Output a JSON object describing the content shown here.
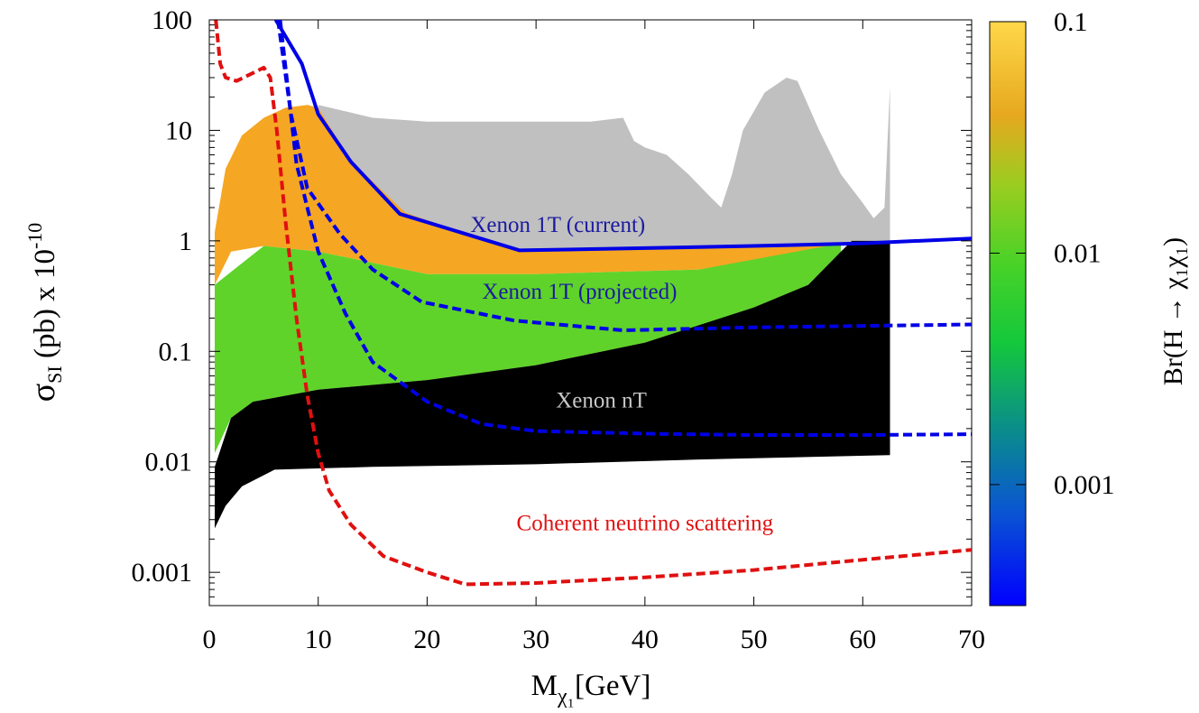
{
  "chart_data": {
    "type": "scatter",
    "xlabel": {
      "main": "M",
      "sub": "χ₁",
      "unit": "[GeV]"
    },
    "ylabel": {
      "sigma": "σ",
      "sub": "SI",
      "mid": " (pb) x 10",
      "sup": "-10"
    },
    "x_ticks": [
      "0",
      "10",
      "20",
      "30",
      "40",
      "50",
      "60",
      "70"
    ],
    "x_tick_values": [
      0,
      10,
      20,
      30,
      40,
      50,
      60,
      70
    ],
    "y_ticks": [
      "100",
      "10",
      "1",
      "0.1",
      "0.01",
      "0.001"
    ],
    "y_tick_values": [
      100,
      10,
      1,
      0.1,
      0.01,
      0.001
    ],
    "xlim": [
      0,
      70
    ],
    "ylim": [
      0.0005,
      100
    ],
    "y_scale": "log",
    "grid": false,
    "colorbar": {
      "label": "Br(H → χ₁χ₁)",
      "ticks": [
        "0.1",
        "0.01",
        "0.001"
      ],
      "tick_values": [
        0.1,
        0.01,
        0.001
      ],
      "range": [
        0.0003,
        0.1
      ],
      "scale": "log",
      "colors": [
        "#0000ff",
        "#0072c8",
        "#00a86b",
        "#2ed12e",
        "#7fd52a",
        "#e0b400",
        "#f5a623",
        "#ffd34d"
      ]
    },
    "regions": [
      {
        "name": "grey",
        "color": "#c0c0c0",
        "upper": [
          [
            10,
            17
          ],
          [
            15,
            13
          ],
          [
            20,
            12
          ],
          [
            25,
            12
          ],
          [
            30,
            12
          ],
          [
            35,
            12
          ],
          [
            38,
            13
          ],
          [
            39,
            8
          ],
          [
            40,
            7
          ],
          [
            42,
            6
          ],
          [
            44,
            4
          ],
          [
            46,
            2.5
          ],
          [
            47,
            2
          ],
          [
            48,
            4
          ],
          [
            49,
            10
          ],
          [
            51,
            22
          ],
          [
            53,
            30
          ],
          [
            54,
            28
          ],
          [
            56,
            10
          ],
          [
            58,
            4
          ],
          [
            60,
            2.2
          ],
          [
            61,
            1.6
          ],
          [
            62,
            2
          ],
          [
            62.5,
            25
          ]
        ],
        "lower": [
          [
            10,
            13
          ],
          [
            13,
            5
          ],
          [
            18,
            1.7
          ],
          [
            28,
            0.82
          ],
          [
            40,
            0.86
          ],
          [
            50,
            0.92
          ],
          [
            62.5,
            0.95
          ]
        ]
      },
      {
        "name": "orange",
        "color": "#f5a623",
        "upper": [
          [
            0.5,
            1.2
          ],
          [
            1.5,
            4.5
          ],
          [
            3,
            9
          ],
          [
            5,
            13
          ],
          [
            7,
            16
          ],
          [
            9,
            17
          ],
          [
            10,
            16
          ],
          [
            13,
            5.3
          ],
          [
            18,
            1.8
          ],
          [
            28,
            0.82
          ],
          [
            45,
            0.85
          ],
          [
            58,
            0.95
          ]
        ],
        "lower": [
          [
            0.5,
            0.4
          ],
          [
            2,
            0.8
          ],
          [
            5,
            0.9
          ],
          [
            10,
            0.8
          ],
          [
            20,
            0.5
          ],
          [
            30,
            0.5
          ],
          [
            45,
            0.55
          ],
          [
            58,
            0.9
          ]
        ]
      },
      {
        "name": "green",
        "color": "#5fd32a",
        "upper": [
          [
            0.5,
            0.4
          ],
          [
            5,
            0.9
          ],
          [
            10,
            0.8
          ],
          [
            20,
            0.5
          ],
          [
            30,
            0.5
          ],
          [
            45,
            0.55
          ],
          [
            58,
            0.95
          ]
        ],
        "lower": [
          [
            0.5,
            0.012
          ],
          [
            2,
            0.025
          ],
          [
            4,
            0.035
          ],
          [
            10,
            0.045
          ],
          [
            20,
            0.055
          ],
          [
            30,
            0.075
          ],
          [
            40,
            0.12
          ],
          [
            50,
            0.25
          ],
          [
            55,
            0.4
          ],
          [
            58,
            0.8
          ]
        ]
      },
      {
        "name": "black",
        "color": "#000000",
        "upper": [
          [
            0.5,
            0.009
          ],
          [
            2,
            0.025
          ],
          [
            4,
            0.035
          ],
          [
            10,
            0.045
          ],
          [
            20,
            0.055
          ],
          [
            30,
            0.075
          ],
          [
            40,
            0.12
          ],
          [
            50,
            0.25
          ],
          [
            55,
            0.4
          ],
          [
            58,
            0.8
          ],
          [
            59,
            1
          ],
          [
            62.5,
            1
          ]
        ],
        "lower": [
          [
            0.5,
            0.0025
          ],
          [
            1.5,
            0.004
          ],
          [
            3,
            0.006
          ],
          [
            6,
            0.0085
          ],
          [
            15,
            0.009
          ],
          [
            30,
            0.0095
          ],
          [
            45,
            0.0105
          ],
          [
            62.5,
            0.0115
          ]
        ]
      }
    ],
    "series": [
      {
        "name": "Xenon 1T (current)",
        "style": "solid",
        "color": "#0000e6",
        "x": [
          6.1,
          8.5,
          10,
          13,
          17.5,
          28.5,
          40,
          50,
          60,
          70
        ],
        "y": [
          100,
          40,
          14,
          5.2,
          1.75,
          0.82,
          0.86,
          0.9,
          0.95,
          1.05
        ]
      },
      {
        "name": "Xenon 1T (projected)",
        "style": "dashed",
        "color": "#0000e6",
        "x": [
          6.3,
          7.5,
          9,
          12,
          15,
          19.5,
          28,
          38,
          50,
          60,
          70
        ],
        "y": [
          100,
          14,
          3,
          1.15,
          0.55,
          0.28,
          0.19,
          0.155,
          0.165,
          0.17,
          0.175
        ]
      },
      {
        "name": "Xenon nT",
        "style": "dashed",
        "color": "#0000e6",
        "x": [
          6.5,
          8,
          10,
          12.5,
          15,
          20,
          25,
          30,
          40,
          50,
          60,
          70
        ],
        "y": [
          100,
          5,
          0.8,
          0.22,
          0.08,
          0.035,
          0.022,
          0.019,
          0.018,
          0.0175,
          0.0175,
          0.0178
        ]
      },
      {
        "name": "Coherent neutrino scattering",
        "style": "dashed",
        "color": "#e01010",
        "x": [
          0.6,
          1,
          1.5,
          2.5,
          4,
          5,
          5.6,
          6.2,
          7,
          8,
          9,
          10,
          11,
          13,
          16,
          20,
          23.5,
          30,
          40,
          50,
          60,
          70
        ],
        "y": [
          100,
          40,
          30,
          28,
          33,
          37,
          30,
          10,
          1.5,
          0.2,
          0.04,
          0.012,
          0.0055,
          0.0027,
          0.0014,
          0.001,
          0.00078,
          0.0008,
          0.0009,
          0.00105,
          0.0013,
          0.0016
        ]
      }
    ],
    "annotations": [
      {
        "text": "Xenon 1T (current)",
        "x": 32,
        "y": 1.2,
        "color": "#1a1aa0"
      },
      {
        "text": "Xenon 1T (projected)",
        "x": 34,
        "y": 0.3,
        "color": "#1a1aa0"
      },
      {
        "text": "Xenon nT",
        "x": 36,
        "y": 0.031,
        "color": "#c8c8c8"
      },
      {
        "text": "Coherent neutrino scattering",
        "x": 40,
        "y": 0.0024,
        "color": "#e01010"
      }
    ]
  }
}
